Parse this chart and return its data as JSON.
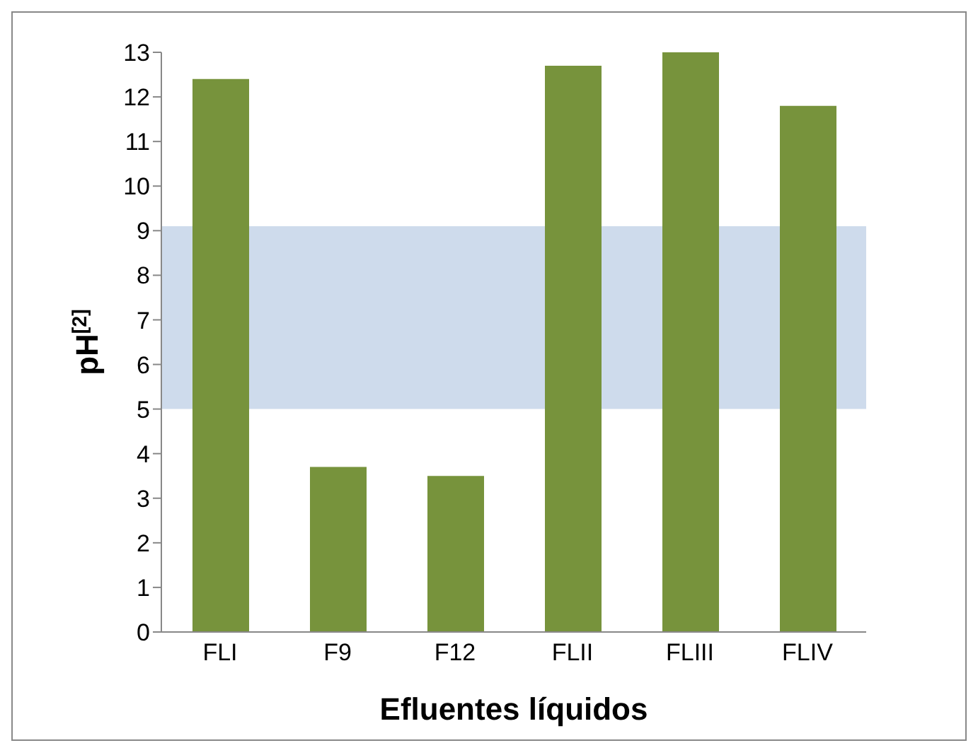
{
  "chart_data": {
    "type": "bar",
    "xlabel": "Efluentes líquidos",
    "ylabel": "pH$^{[2]}$",
    "categories": [
      "FLI",
      "F9",
      "F12",
      "FLII",
      "FLIII",
      "FLIV"
    ],
    "values": [
      12.4,
      3.7,
      3.5,
      12.7,
      13.0,
      11.8
    ],
    "color": "#77933c",
    "ylim": [
      0,
      13
    ],
    "yticks": [
      0,
      1,
      2,
      3,
      4,
      5,
      6,
      7,
      8,
      9,
      10,
      11,
      12,
      13
    ],
    "grid": false,
    "bands": [
      {
        "axis": "y",
        "from": 5,
        "to": 9.1,
        "color": "#b9cce4"
      }
    ]
  }
}
